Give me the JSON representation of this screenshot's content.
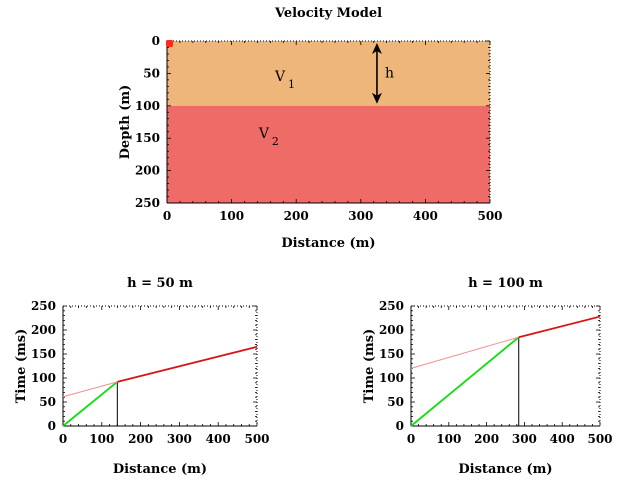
{
  "chart_data": [
    {
      "type": "area",
      "title": "Velocity Model",
      "xlabel": "Distance (m)",
      "ylabel": "Depth (m)",
      "xlim": [
        0,
        500
      ],
      "ylim": [
        250,
        0
      ],
      "xticks": [
        0,
        100,
        200,
        300,
        400,
        500
      ],
      "yticks": [
        0,
        50,
        100,
        150,
        200,
        250
      ],
      "layers": [
        {
          "name": "V",
          "subscript": "1",
          "top": 0,
          "bottom": 100,
          "color": "#efb67c"
        },
        {
          "name": "V",
          "subscript": "2",
          "top": 100,
          "bottom": 250,
          "color": "#ee6b68"
        }
      ],
      "source_point": {
        "x": 0,
        "y": 0,
        "color": "#ff2a1a"
      },
      "thickness_annotation": {
        "label": "h",
        "x": 325,
        "from": 0,
        "to": 100
      }
    },
    {
      "type": "line",
      "title": "h = 50 m",
      "xlabel": "Distance (m)",
      "ylabel": "Time (ms)",
      "xlim": [
        0,
        500
      ],
      "ylim": [
        0,
        250
      ],
      "xticks": [
        0,
        100,
        200,
        300,
        400,
        500
      ],
      "yticks": [
        0,
        50,
        100,
        150,
        200,
        250
      ],
      "series": [
        {
          "color": "#11dd11",
          "x": [
            0,
            140
          ],
          "y": [
            0,
            92
          ]
        },
        {
          "color": "#f09090",
          "x": [
            0,
            140
          ],
          "y": [
            61,
            92
          ]
        },
        {
          "color": "#dd1111",
          "x": [
            140,
            500
          ],
          "y": [
            92,
            165
          ]
        }
      ],
      "vline": {
        "x": 140,
        "y": 92
      }
    },
    {
      "type": "line",
      "title": "h = 100 m",
      "xlabel": "Distance (m)",
      "ylabel": "Time (ms)",
      "xlim": [
        0,
        500
      ],
      "ylim": [
        0,
        250
      ],
      "xticks": [
        0,
        100,
        200,
        300,
        400,
        500
      ],
      "yticks": [
        0,
        50,
        100,
        150,
        200,
        250
      ],
      "series": [
        {
          "color": "#11dd11",
          "x": [
            0,
            285
          ],
          "y": [
            0,
            185
          ]
        },
        {
          "color": "#f09090",
          "x": [
            0,
            285
          ],
          "y": [
            120,
            185
          ]
        },
        {
          "color": "#dd1111",
          "x": [
            285,
            500
          ],
          "y": [
            185,
            228
          ]
        }
      ],
      "vline": {
        "x": 285,
        "y": 185
      }
    }
  ]
}
